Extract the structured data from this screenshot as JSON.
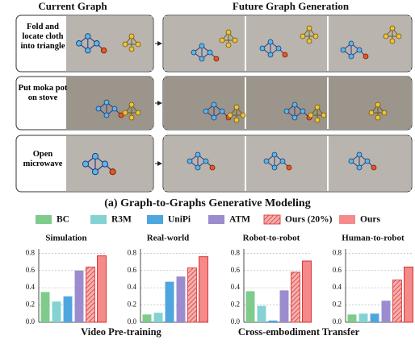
{
  "header": {
    "current": "Current Graph",
    "future": "Future Graph Generation"
  },
  "tasks": [
    "Fold and locate cloth into triangle",
    "Put moka pot on stove",
    "Open microwave"
  ],
  "caption": "(a) Graph-to-Graphs Generative Modeling",
  "groups": [
    "Video Pre-training",
    "Cross-embodiment Transfer"
  ],
  "chart_data": {
    "type": "bar",
    "categories": [
      "Simulation",
      "Real-world",
      "Robot-to-robot",
      "Human-to-robot"
    ],
    "series": [
      {
        "name": "BC",
        "color": "#7ecb8c",
        "values": [
          0.35,
          0.09,
          0.36,
          0.09
        ]
      },
      {
        "name": "R3M",
        "color": "#84d2d2",
        "values": [
          0.24,
          0.11,
          0.19,
          0.1
        ]
      },
      {
        "name": "UniPi",
        "color": "#4ea6de",
        "values": [
          0.3,
          0.47,
          0.02,
          0.1
        ]
      },
      {
        "name": "ATM",
        "color": "#9a8ccf",
        "values": [
          0.6,
          0.53,
          0.37,
          0.25
        ]
      },
      {
        "name": "Ours (20%)",
        "color": "#e04848",
        "values": [
          0.64,
          0.63,
          0.58,
          0.49
        ],
        "hatch": true
      },
      {
        "name": "Ours",
        "color": "#f48a8a",
        "values": [
          0.77,
          0.76,
          0.71,
          0.64
        ]
      }
    ],
    "ylim": [
      0,
      0.85
    ],
    "yticks": [
      {
        "value": 0,
        "label": "0.0"
      },
      0.2,
      0.4,
      0.6,
      0.8
    ],
    "grid": true
  }
}
